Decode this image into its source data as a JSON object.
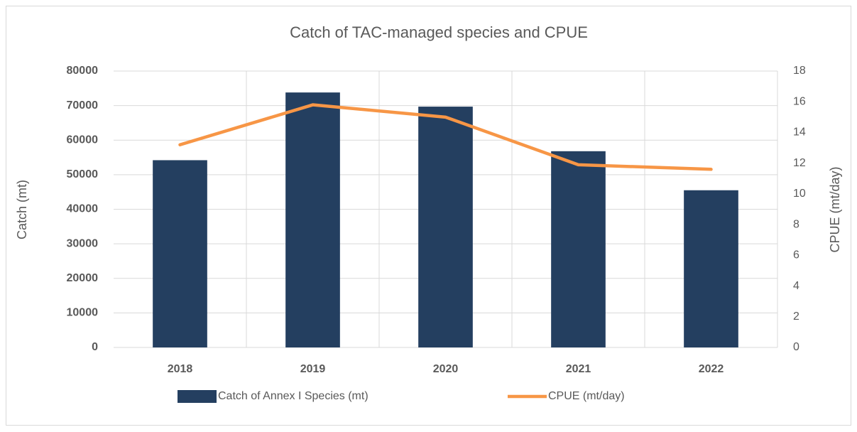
{
  "chart_data": {
    "type": "bar",
    "title": "Catch of TAC-managed species and CPUE",
    "ylabel": "Catch (mt)",
    "y2label": "CPUE (mt/day)",
    "categories": [
      "2018",
      "2019",
      "2020",
      "2021",
      "2022"
    ],
    "series": [
      {
        "name": "Catch of Annex I Species (mt)",
        "type": "bar",
        "color": "#243f60",
        "values": [
          54200,
          73800,
          69700,
          56800,
          45500
        ]
      },
      {
        "name": "CPUE (mt/day)",
        "type": "line",
        "axis": "y2",
        "color": "#f79646",
        "values": [
          13.2,
          15.8,
          15.0,
          11.9,
          11.6
        ]
      }
    ],
    "ylim": [
      0,
      80000
    ],
    "yticks": [
      0,
      10000,
      20000,
      30000,
      40000,
      50000,
      60000,
      70000,
      80000
    ],
    "y2lim": [
      0,
      18
    ],
    "y2ticks": [
      0,
      2,
      4,
      6,
      8,
      10,
      12,
      14,
      16,
      18
    ],
    "grid": true,
    "legend": "bottom"
  }
}
